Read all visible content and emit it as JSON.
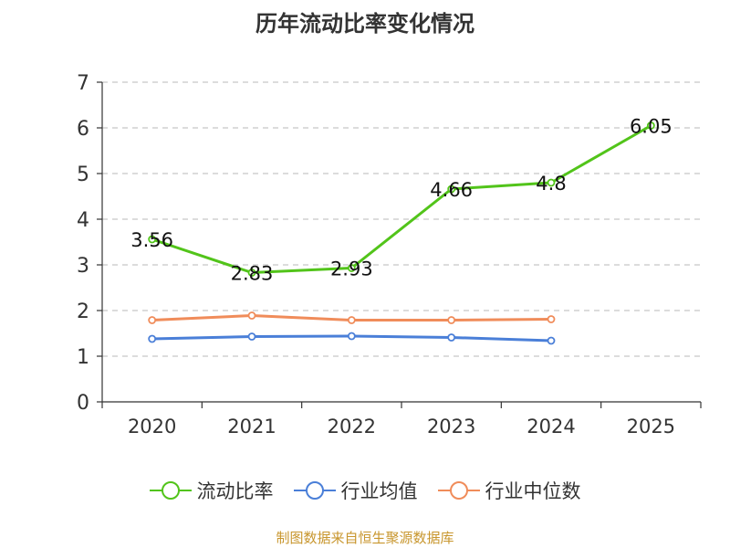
{
  "chart_data": {
    "type": "line",
    "title": "历年流动比率变化情况",
    "categories": [
      "2020",
      "2021",
      "2022",
      "2023",
      "2024",
      "2025"
    ],
    "ylim": [
      0,
      7
    ],
    "yticks": [
      0,
      1,
      2,
      3,
      4,
      5,
      6,
      7
    ],
    "ytick_labels": [
      "0",
      "1",
      "2",
      "3",
      "4",
      "5",
      "6",
      "7"
    ],
    "grid": "horizontal-dashed",
    "legend_position": "bottom",
    "series": [
      {
        "name": "流动比率",
        "color": "#52c41a",
        "values": [
          3.56,
          2.83,
          2.93,
          4.66,
          4.8,
          6.05
        ],
        "labels": [
          "3.56",
          "2.83",
          "2.93",
          "4.66",
          "4.8",
          "6.05"
        ],
        "show_labels": true
      },
      {
        "name": "行业均值",
        "color": "#4a7fd8",
        "values": [
          1.38,
          1.43,
          1.44,
          1.41,
          1.34,
          null
        ],
        "show_labels": false
      },
      {
        "name": "行业中位数",
        "color": "#f08c5a",
        "values": [
          1.79,
          1.89,
          1.79,
          1.79,
          1.81,
          null
        ],
        "show_labels": false
      }
    ]
  },
  "footer": {
    "source": "制图数据来自恒生聚源数据库"
  }
}
